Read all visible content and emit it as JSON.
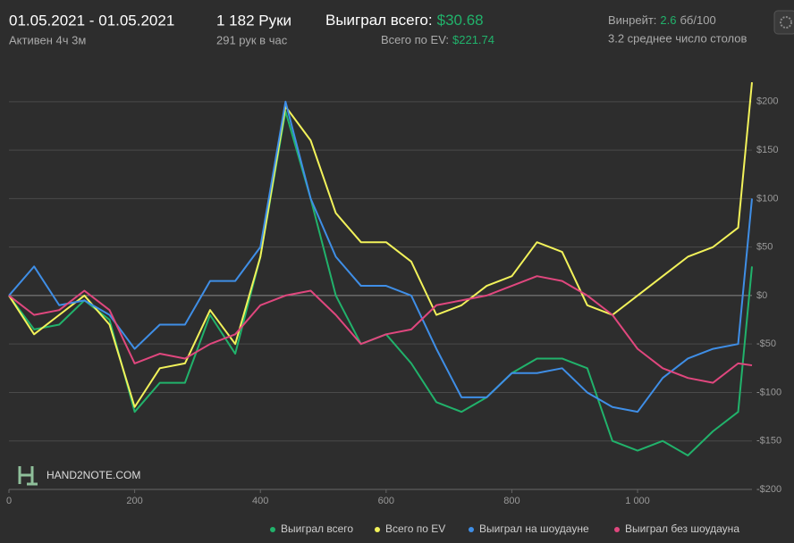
{
  "header": {
    "dates": "01.05.2021 - 01.05.2021",
    "active": "Активен 4ч 3м",
    "hands": "1 182 Руки",
    "hands_per_hour": "291 рук в час",
    "won_label": "Выиграл всего:",
    "won_value": "$30.68",
    "ev_label": "Всего по EV:",
    "ev_value": "$221.74",
    "winrate_label": "Винрейт:",
    "winrate_value": "2.6",
    "winrate_unit": "бб/100",
    "tables": "3.2 среднее число столов",
    "watermark": "HAND2NOTE.COM"
  },
  "chart_data": {
    "type": "line",
    "x": [
      0,
      40,
      80,
      120,
      160,
      200,
      240,
      280,
      320,
      360,
      400,
      440,
      480,
      520,
      560,
      600,
      640,
      680,
      720,
      760,
      800,
      840,
      880,
      920,
      960,
      1000,
      1040,
      1080,
      1120,
      1160,
      1182
    ],
    "series": [
      {
        "name": "Выиграл всего",
        "color": "#21b26b",
        "values": [
          0,
          -35,
          -30,
          -5,
          -25,
          -120,
          -90,
          -90,
          -20,
          -60,
          40,
          190,
          100,
          0,
          -50,
          -40,
          -70,
          -110,
          -120,
          -105,
          -80,
          -65,
          -65,
          -75,
          -150,
          -160,
          -150,
          -165,
          -140,
          -120,
          30
        ]
      },
      {
        "name": "Всего по EV",
        "color": "#f2f25a",
        "values": [
          0,
          -40,
          -20,
          0,
          -30,
          -115,
          -75,
          -70,
          -15,
          -50,
          40,
          195,
          160,
          85,
          55,
          55,
          35,
          -20,
          -10,
          10,
          20,
          55,
          45,
          -10,
          -20,
          0,
          20,
          40,
          50,
          70,
          220
        ]
      },
      {
        "name": "Выиграл на шоудауне",
        "color": "#3f8ee6",
        "values": [
          0,
          30,
          -10,
          -5,
          -20,
          -55,
          -30,
          -30,
          15,
          15,
          50,
          200,
          100,
          40,
          10,
          10,
          0,
          -55,
          -105,
          -105,
          -80,
          -80,
          -75,
          -100,
          -115,
          -120,
          -85,
          -65,
          -55,
          -50,
          100
        ]
      },
      {
        "name": "Выиграл без шоудауна",
        "color": "#e0477e",
        "values": [
          0,
          -20,
          -15,
          5,
          -15,
          -70,
          -60,
          -65,
          -50,
          -40,
          -10,
          0,
          5,
          -20,
          -50,
          -40,
          -35,
          -10,
          -5,
          0,
          10,
          20,
          15,
          0,
          -20,
          -55,
          -75,
          -85,
          -90,
          -70,
          -72
        ]
      }
    ],
    "xlim": [
      0,
      1182
    ],
    "ylim": [
      -200,
      233
    ],
    "xticks": [
      0,
      200,
      400,
      600,
      800,
      {
        "value": 1000,
        "label": "1 000"
      }
    ],
    "yticks": [
      {
        "value": -200,
        "label": "-$200"
      },
      {
        "value": -150,
        "label": "-$150"
      },
      {
        "value": -100,
        "label": "-$100"
      },
      {
        "value": -50,
        "label": "-$50"
      },
      {
        "value": 0,
        "label": "$0"
      },
      {
        "value": 50,
        "label": "$50"
      },
      {
        "value": 100,
        "label": "$100"
      },
      {
        "value": 150,
        "label": "$150"
      },
      {
        "value": 200,
        "label": "$200"
      }
    ],
    "grid": true,
    "legend": "bottom"
  }
}
